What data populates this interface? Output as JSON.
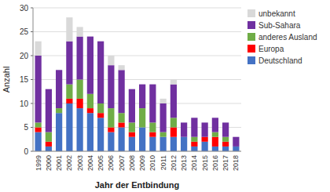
{
  "chart_data": {
    "type": "bar",
    "stacked": true,
    "xlabel": "Jahr der Entbindung",
    "ylabel": "Anzahl",
    "categories": [
      "1999",
      "2000",
      "2001",
      "2002",
      "2003",
      "2004",
      "2005",
      "2006",
      "2007",
      "2008",
      "2009",
      "2010",
      "2011",
      "2012",
      "2013",
      "2014",
      "2015",
      "2016",
      "2017",
      "2018"
    ],
    "series": [
      {
        "name": "Deutschland",
        "color": "#4472C4",
        "values": [
          4,
          1,
          8,
          10,
          9,
          8,
          7,
          4,
          5,
          3,
          5,
          3,
          3,
          3,
          3,
          1,
          2,
          1,
          1,
          1
        ]
      },
      {
        "name": "Europa",
        "color": "#FF0000",
        "values": [
          1,
          1,
          0,
          1,
          2,
          1,
          1,
          1,
          1,
          1,
          0,
          1,
          0,
          2,
          0,
          1,
          1,
          2,
          1,
          0
        ]
      },
      {
        "name": "anderes Ausland",
        "color": "#70AD47",
        "values": [
          1,
          2,
          1,
          3,
          4,
          3,
          2,
          4,
          2,
          2,
          4,
          2,
          1,
          2,
          0,
          1,
          0,
          1,
          1,
          0
        ]
      },
      {
        "name": "Sub-Sahara",
        "color": "#7030A0",
        "values": [
          14,
          9,
          8,
          9,
          9,
          12,
          13,
          9,
          9,
          7,
          5,
          8,
          6,
          7,
          3,
          4,
          3,
          3,
          3,
          2
        ]
      },
      {
        "name": "unbekannt",
        "color": "#D9D9D9",
        "values": [
          3,
          0,
          0,
          5,
          2,
          0,
          0,
          2,
          1,
          0,
          0,
          0,
          1,
          1,
          0,
          0,
          0,
          0,
          0,
          0
        ]
      }
    ],
    "ylim": [
      0,
      30
    ],
    "yticks": [
      0,
      5,
      10,
      15,
      20,
      25,
      30
    ],
    "grid": true,
    "legend": "upper right"
  }
}
